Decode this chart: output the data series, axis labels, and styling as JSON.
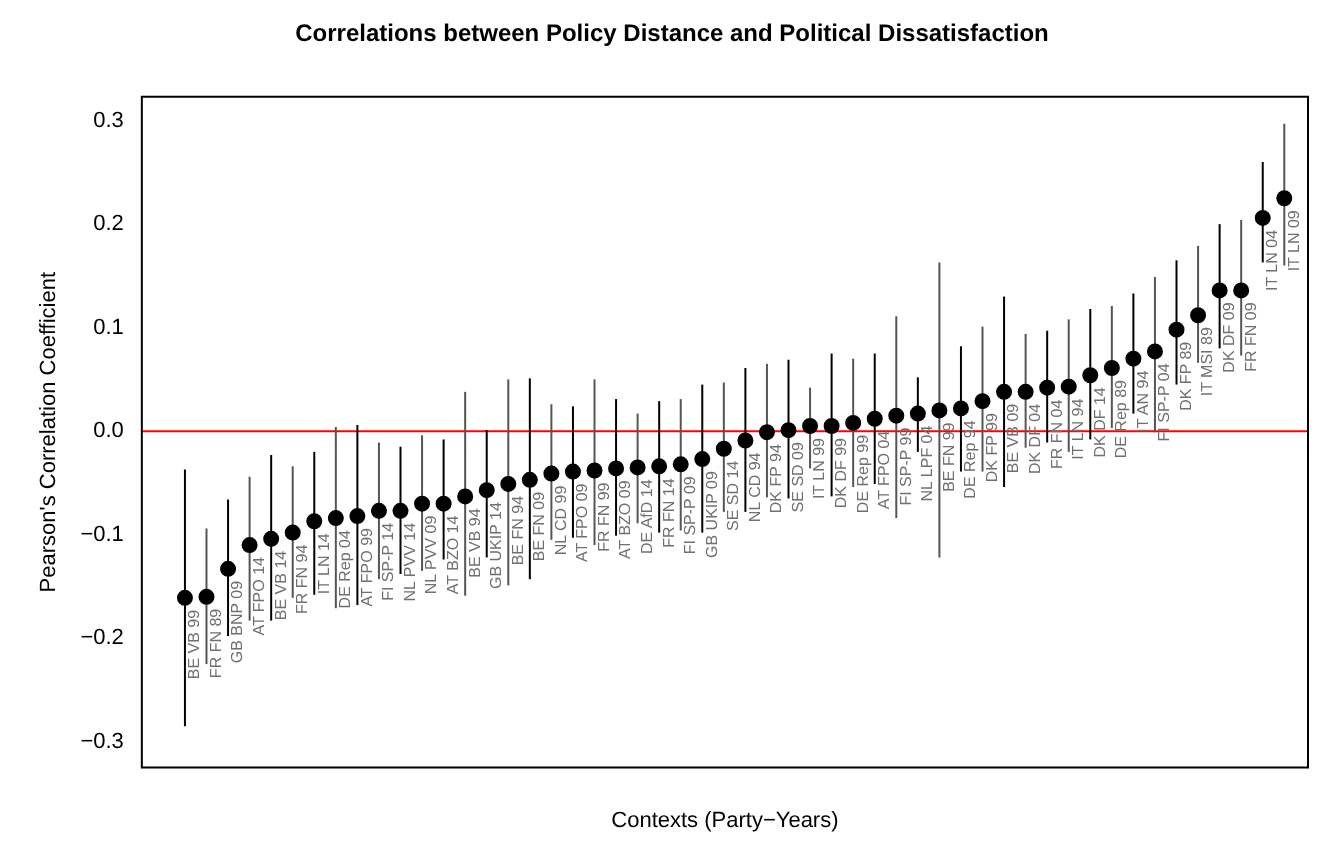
{
  "chart_data": {
    "type": "scatter",
    "title": "Correlations between Policy Distance and Political Dissatisfaction",
    "xlabel": "Contexts (Party−Years)",
    "ylabel": "Pearson's Correlation Coefficient",
    "categories": [
      "BE VB 99",
      "FR FN 89",
      "GB BNP 09",
      "AT FPO 14",
      "BE VB 14",
      "FR FN 94",
      "IT LN 14",
      "DE Rep 04",
      "AT FPO 99",
      "FI SP-P 14",
      "NL PVV 14",
      "NL PVV 09",
      "AT BZO 14",
      "BE VB 94",
      "GB UKIP 14",
      "BE FN 94",
      "BE FN 09",
      "NL CD 99",
      "AT FPO 09",
      "FR FN 99",
      "AT BZO 09",
      "DE AfD 14",
      "FR FN 14",
      "FI SP-P 09",
      "GB UKIP 09",
      "SE SD 14",
      "NL CD 94",
      "DK FP 94",
      "SE SD 09",
      "IT LN 99",
      "DK DF 99",
      "DE Rep 99",
      "AT FPO 04",
      "FI SP-P 99",
      "NL LPF 04",
      "BE FN 99",
      "DE Rep 94",
      "DK FP 99",
      "BE VB 09",
      "DK DF 04",
      "FR FN 04",
      "IT LN 94",
      "DK DF 14",
      "DE Rep 89",
      "IT AN 94",
      "FI SP-P 04",
      "DK FP 89",
      "IT MSI 89",
      "DK DF 09",
      "FR FN 09",
      "IT LN 04",
      "IT LN 09"
    ],
    "values": [
      -0.161,
      -0.16,
      -0.133,
      -0.11,
      -0.104,
      -0.098,
      -0.087,
      -0.084,
      -0.082,
      -0.077,
      -0.077,
      -0.07,
      -0.07,
      -0.063,
      -0.057,
      -0.051,
      -0.047,
      -0.041,
      -0.039,
      -0.038,
      -0.036,
      -0.035,
      -0.034,
      -0.032,
      -0.027,
      -0.017,
      -0.009,
      -0.001,
      0.001,
      0.005,
      0.005,
      0.008,
      0.012,
      0.015,
      0.017,
      0.02,
      0.022,
      0.029,
      0.038,
      0.038,
      0.042,
      0.043,
      0.054,
      0.061,
      0.07,
      0.077,
      0.098,
      0.112,
      0.136,
      0.136,
      0.206,
      0.225
    ],
    "errors": [
      [
        -0.285,
        -0.037
      ],
      [
        -0.225,
        -0.094
      ],
      [
        -0.198,
        -0.066
      ],
      [
        -0.183,
        -0.044
      ],
      [
        -0.183,
        -0.023
      ],
      [
        -0.161,
        -0.034
      ],
      [
        -0.158,
        -0.02
      ],
      [
        -0.171,
        0.004
      ],
      [
        -0.168,
        0.006
      ],
      [
        -0.143,
        -0.011
      ],
      [
        -0.138,
        -0.015
      ],
      [
        -0.135,
        -0.004
      ],
      [
        -0.124,
        -0.008
      ],
      [
        -0.159,
        0.038
      ],
      [
        -0.122,
        0.001
      ],
      [
        -0.149,
        0.05
      ],
      [
        -0.143,
        0.051
      ],
      [
        -0.105,
        0.026
      ],
      [
        -0.103,
        0.024
      ],
      [
        -0.11,
        0.05
      ],
      [
        -0.101,
        0.031
      ],
      [
        -0.089,
        0.017
      ],
      [
        -0.098,
        0.029
      ],
      [
        -0.096,
        0.031
      ],
      [
        -0.098,
        0.045
      ],
      [
        -0.078,
        0.047
      ],
      [
        -0.078,
        0.061
      ],
      [
        -0.064,
        0.065
      ],
      [
        -0.065,
        0.069
      ],
      [
        -0.036,
        0.042
      ],
      [
        -0.063,
        0.075
      ],
      [
        -0.054,
        0.07
      ],
      [
        -0.051,
        0.075
      ],
      [
        -0.084,
        0.111
      ],
      [
        -0.02,
        0.052
      ],
      [
        -0.122,
        0.163
      ],
      [
        -0.039,
        0.082
      ],
      [
        -0.039,
        0.101
      ],
      [
        -0.054,
        0.13
      ],
      [
        -0.016,
        0.094
      ],
      [
        -0.011,
        0.097
      ],
      [
        -0.02,
        0.108
      ],
      [
        -0.008,
        0.118
      ],
      [
        0.003,
        0.121
      ],
      [
        0.017,
        0.133
      ],
      [
        -0.001,
        0.149
      ],
      [
        0.045,
        0.165
      ],
      [
        0.066,
        0.179
      ],
      [
        0.08,
        0.2
      ],
      [
        0.073,
        0.204
      ],
      [
        0.163,
        0.26
      ],
      [
        0.16,
        0.297
      ]
    ],
    "data_labels": false,
    "color": "#000000",
    "marker": "circle",
    "ylim": [
      -0.325,
      0.323
    ],
    "yticks": [
      {
        "value": -0.3,
        "label": "−0.3"
      },
      {
        "value": -0.2,
        "label": "−0.2"
      },
      {
        "value": -0.1,
        "label": "−0.1"
      },
      {
        "value": 0,
        "label": "0.0"
      },
      {
        "value": 0.1,
        "label": "0.1"
      },
      {
        "value": 0.2,
        "label": "0.2"
      },
      {
        "value": 0.3,
        "label": "0.3"
      }
    ],
    "tick_labels": "y",
    "ref_lines": [
      {
        "axis": "y",
        "value": 0,
        "color": "#ff0000"
      }
    ]
  }
}
